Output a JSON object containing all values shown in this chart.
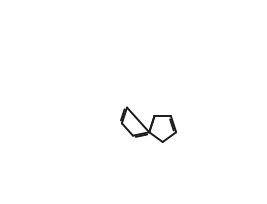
{
  "bg_color": "#ffffff",
  "line_color": "#1a1a1a",
  "line_width": 1.3,
  "font_size_atom": 7.5,
  "figsize": [
    2.67,
    2.04
  ],
  "dpi": 100
}
